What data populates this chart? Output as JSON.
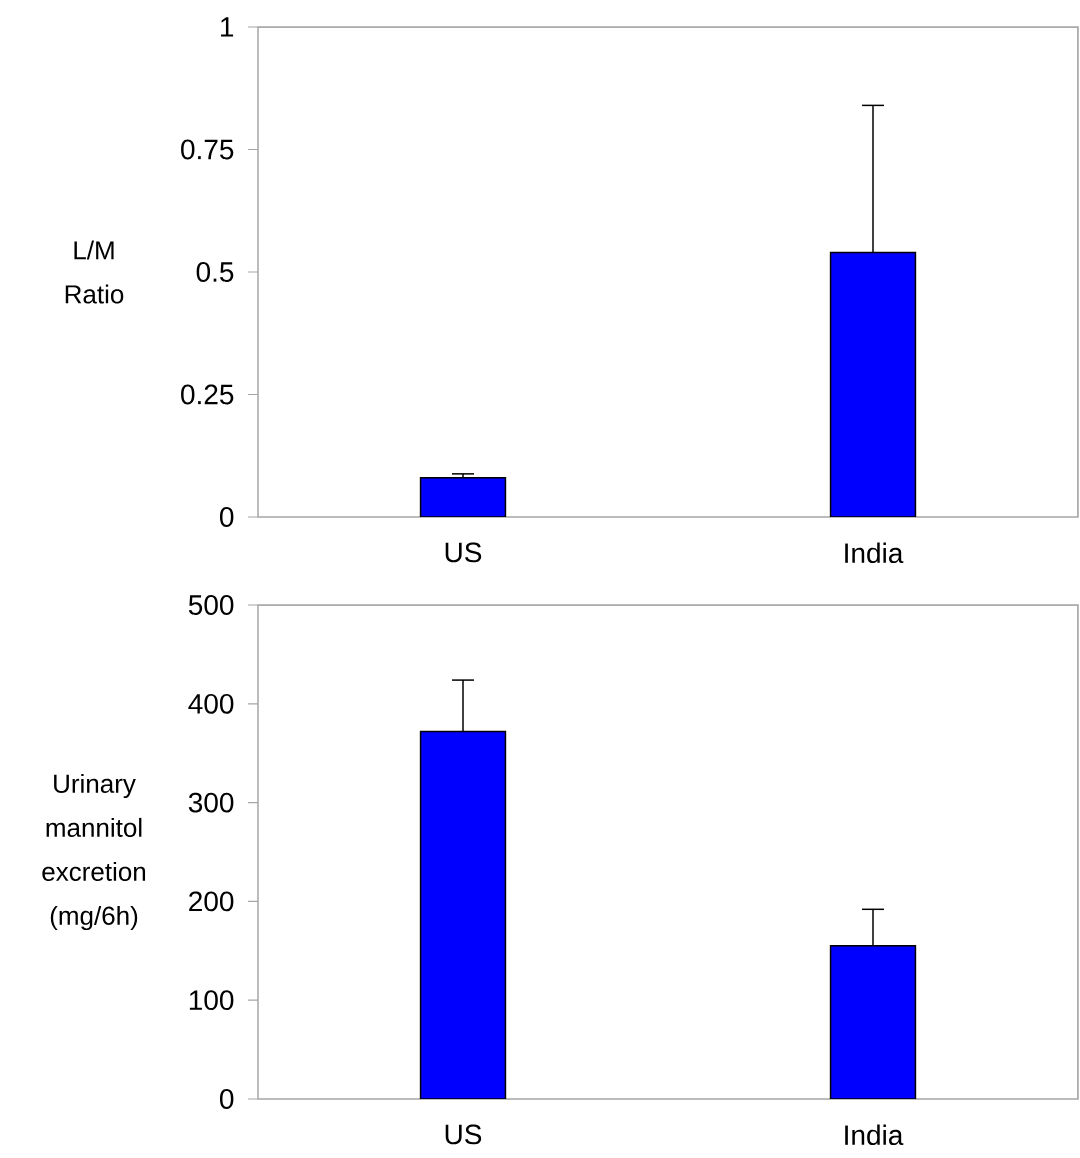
{
  "chart_data": [
    {
      "type": "bar",
      "ylabel": "L/M Ratio",
      "categories": [
        "US",
        "India"
      ],
      "values": [
        0.08,
        0.54
      ],
      "errors": [
        [
          0.08,
          0.088
        ],
        [
          0.54,
          0.84
        ]
      ],
      "color": "#0000ff",
      "ylim": [
        0,
        1
      ],
      "yticks": [
        0,
        0.25,
        0.5,
        0.75,
        1
      ]
    },
    {
      "type": "bar",
      "ylabel": "Urinary mannitol excretion (mg/6h)",
      "categories": [
        "US",
        "India"
      ],
      "values": [
        372,
        155
      ],
      "errors": [
        [
          372,
          424
        ],
        [
          155,
          192
        ]
      ],
      "color": "#0000ff",
      "ylim": [
        0,
        500
      ],
      "yticks": [
        0,
        100,
        200,
        300,
        400,
        500
      ]
    }
  ]
}
